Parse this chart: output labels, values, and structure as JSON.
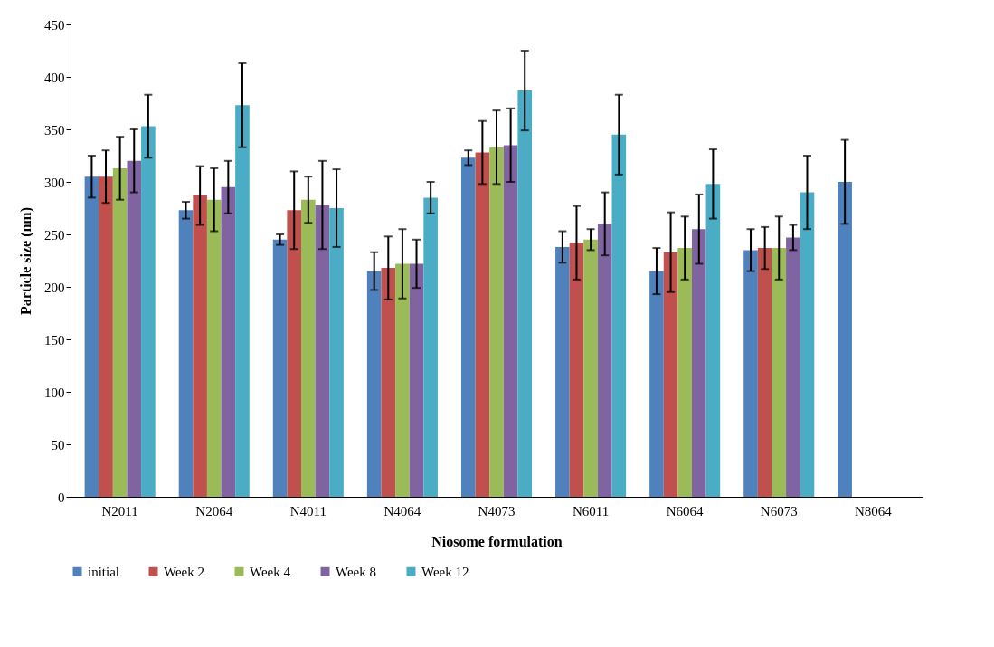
{
  "chart_data": {
    "type": "bar",
    "xlabel": "Niosome formulation",
    "ylabel": "Particle size (nm)",
    "categories": [
      "N2011",
      "N2064",
      "N4011",
      "N4064",
      "N4073",
      "N6011",
      "N6064",
      "N6073",
      "N8064"
    ],
    "ylim": [
      0,
      450
    ],
    "yticks": [
      0,
      50,
      100,
      150,
      200,
      250,
      300,
      350,
      400,
      450
    ],
    "grid": false,
    "legend": "bottom",
    "series": [
      {
        "name": "initial",
        "color": "#4f81bd",
        "values": [
          305,
          273,
          245,
          215,
          323,
          238,
          215,
          235,
          300
        ],
        "errors": [
          20,
          8,
          5,
          18,
          7,
          15,
          22,
          20,
          40
        ]
      },
      {
        "name": "Week 2",
        "color": "#c0504d",
        "values": [
          305,
          287,
          273,
          218,
          328,
          242,
          233,
          237,
          null
        ],
        "errors": [
          25,
          28,
          37,
          30,
          30,
          35,
          38,
          20,
          null
        ]
      },
      {
        "name": "Week 4",
        "color": "#9bbb59",
        "values": [
          313,
          283,
          283,
          222,
          333,
          245,
          237,
          237,
          null
        ],
        "errors": [
          30,
          30,
          22,
          33,
          35,
          10,
          30,
          30,
          null
        ]
      },
      {
        "name": "Week 8",
        "color": "#8064a2",
        "values": [
          320,
          295,
          278,
          222,
          335,
          260,
          255,
          247,
          null
        ],
        "errors": [
          30,
          25,
          42,
          23,
          35,
          30,
          33,
          12,
          null
        ]
      },
      {
        "name": "Week 12",
        "color": "#4bacc6",
        "values": [
          353,
          373,
          275,
          285,
          387,
          345,
          298,
          290,
          null
        ],
        "errors": [
          30,
          40,
          37,
          15,
          38,
          38,
          33,
          35,
          null
        ]
      }
    ]
  }
}
